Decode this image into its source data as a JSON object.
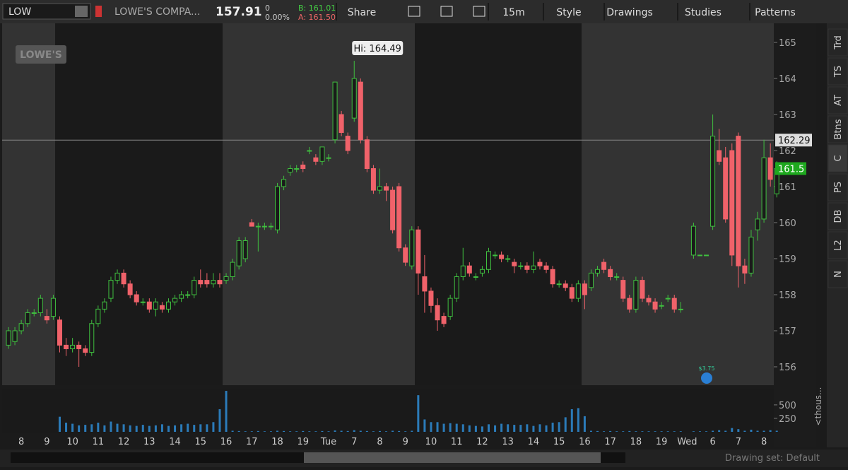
{
  "toolbar": {
    "symbol": "LOW",
    "company": "LOWE'S COMPA...",
    "last": "157.91",
    "change": "0",
    "change_pct": "0.00%",
    "bid": "B: 161.01",
    "ask": "A: 161.50",
    "buttons": [
      "Share",
      "15m",
      "Style",
      "Drawings",
      "Studies",
      "Patterns"
    ]
  },
  "side_tabs": [
    "Trd",
    "TS",
    "AT",
    "Btns",
    "C",
    "PS",
    "DB",
    "L2",
    "N"
  ],
  "logo": "LOWE'S",
  "drawing_set": "Drawing set: Default",
  "chart_data": {
    "type": "candlestick",
    "categories": [
      null,
      null,
      "8",
      null,
      null,
      null,
      "9",
      null,
      null,
      null,
      "10",
      null,
      null,
      null,
      "11",
      null,
      null,
      null,
      "12",
      null,
      null,
      null,
      "13",
      null,
      null,
      null,
      "14",
      null,
      null,
      null,
      "15",
      null,
      null,
      null,
      "16",
      null,
      null,
      null,
      "17",
      null,
      null,
      null,
      "18",
      null,
      null,
      null,
      "19",
      null,
      null,
      null,
      "Tue",
      null,
      null,
      null,
      "7",
      null,
      null,
      null,
      "8",
      null,
      null,
      null,
      "9",
      null,
      null,
      null,
      "10",
      null,
      null,
      null,
      "11",
      null,
      null,
      null,
      "12",
      null,
      null,
      null,
      "13",
      null,
      null,
      null,
      "14",
      null,
      null,
      null,
      "15",
      null,
      null,
      null,
      "16",
      null,
      null,
      null,
      "17",
      null,
      null,
      null,
      "18",
      null,
      null,
      null,
      "19",
      null,
      null,
      null,
      "Wed",
      null,
      null,
      null,
      "6",
      null,
      null,
      null,
      "7",
      null,
      null,
      null,
      "8",
      null,
      null
    ],
    "candles": [
      [
        156.6,
        157.1,
        156.5,
        157.0
      ],
      [
        156.7,
        157.1,
        156.6,
        157.0
      ],
      [
        157.0,
        157.3,
        156.9,
        157.2
      ],
      [
        157.2,
        157.6,
        157.1,
        157.5
      ],
      [
        157.5,
        157.6,
        157.4,
        157.5
      ],
      [
        157.5,
        158.0,
        157.4,
        157.9
      ],
      [
        157.4,
        157.6,
        157.2,
        157.3
      ],
      [
        157.4,
        158.0,
        157.3,
        157.9
      ],
      [
        157.3,
        157.4,
        156.4,
        156.6
      ],
      [
        156.6,
        156.8,
        156.3,
        156.5
      ],
      [
        156.5,
        156.8,
        156.4,
        156.6
      ],
      [
        156.6,
        156.7,
        156.0,
        156.5
      ],
      [
        156.5,
        156.6,
        156.3,
        156.4
      ],
      [
        156.4,
        157.3,
        156.3,
        157.2
      ],
      [
        157.2,
        157.7,
        157.1,
        157.6
      ],
      [
        157.6,
        157.9,
        157.5,
        157.8
      ],
      [
        157.9,
        158.5,
        157.8,
        158.4
      ],
      [
        158.4,
        158.7,
        158.3,
        158.6
      ],
      [
        158.6,
        158.7,
        158.2,
        158.3
      ],
      [
        158.3,
        158.4,
        157.9,
        158.0
      ],
      [
        158.0,
        158.1,
        157.7,
        157.8
      ],
      [
        157.8,
        157.9,
        157.7,
        157.8
      ],
      [
        157.8,
        157.9,
        157.5,
        157.6
      ],
      [
        157.6,
        157.9,
        157.4,
        157.8
      ],
      [
        157.7,
        157.8,
        157.5,
        157.6
      ],
      [
        157.6,
        157.9,
        157.5,
        157.8
      ],
      [
        157.8,
        158.0,
        157.7,
        157.9
      ],
      [
        157.9,
        158.1,
        157.8,
        158.0
      ],
      [
        158.0,
        158.1,
        157.9,
        158.0
      ],
      [
        158.0,
        158.5,
        157.9,
        158.4
      ],
      [
        158.4,
        158.7,
        158.2,
        158.3
      ],
      [
        158.4,
        158.6,
        158.2,
        158.3
      ],
      [
        158.3,
        158.6,
        158.2,
        158.4
      ],
      [
        158.4,
        158.6,
        158.2,
        158.3
      ],
      [
        158.4,
        158.6,
        158.3,
        158.5
      ],
      [
        158.5,
        159.0,
        158.4,
        158.9
      ],
      [
        158.8,
        159.6,
        158.7,
        159.5
      ],
      [
        159.0,
        159.6,
        158.9,
        159.5
      ],
      [
        160.0,
        160.1,
        159.9,
        159.9
      ],
      [
        159.9,
        160.0,
        159.2,
        159.9
      ],
      [
        159.9,
        160.0,
        159.8,
        159.9
      ],
      [
        159.9,
        160.0,
        159.8,
        159.9
      ],
      [
        159.8,
        161.1,
        159.7,
        161.0
      ],
      [
        161.0,
        161.3,
        160.9,
        161.2
      ],
      [
        161.4,
        161.6,
        161.3,
        161.5
      ],
      [
        161.5,
        161.6,
        161.4,
        161.5
      ],
      [
        161.6,
        161.7,
        161.4,
        161.5
      ],
      [
        162.0,
        162.1,
        161.9,
        162.0
      ],
      [
        161.8,
        161.9,
        161.6,
        161.7
      ],
      [
        161.7,
        162.1,
        161.6,
        162.1
      ],
      [
        161.8,
        161.9,
        161.7,
        161.8
      ],
      [
        162.3,
        163.9,
        162.2,
        163.9
      ],
      [
        163.0,
        163.1,
        162.4,
        162.5
      ],
      [
        162.4,
        162.5,
        161.9,
        162.0
      ],
      [
        162.9,
        164.49,
        162.8,
        164.0
      ],
      [
        163.9,
        164.0,
        162.2,
        162.3
      ],
      [
        162.3,
        162.4,
        161.4,
        161.5
      ],
      [
        161.5,
        161.6,
        160.8,
        160.9
      ],
      [
        160.9,
        161.5,
        160.8,
        161.0
      ],
      [
        161.0,
        161.1,
        160.6,
        160.9
      ],
      [
        160.9,
        161.0,
        159.7,
        159.8
      ],
      [
        161.0,
        161.1,
        159.2,
        159.3
      ],
      [
        159.3,
        159.4,
        158.8,
        158.9
      ],
      [
        158.8,
        159.9,
        158.7,
        159.8
      ],
      [
        159.8,
        159.9,
        158.0,
        158.6
      ],
      [
        158.5,
        159.1,
        157.5,
        158.1
      ],
      [
        158.1,
        158.2,
        157.5,
        157.7
      ],
      [
        157.7,
        157.9,
        157.0,
        157.3
      ],
      [
        157.4,
        157.5,
        157.1,
        157.2
      ],
      [
        157.4,
        158.0,
        157.3,
        157.9
      ],
      [
        157.9,
        158.6,
        157.8,
        158.5
      ],
      [
        158.5,
        159.3,
        158.4,
        158.8
      ],
      [
        158.8,
        158.9,
        158.5,
        158.6
      ],
      [
        158.5,
        158.6,
        158.4,
        158.5
      ],
      [
        158.6,
        158.8,
        158.5,
        158.7
      ],
      [
        158.7,
        159.3,
        158.6,
        159.2
      ],
      [
        159.1,
        159.2,
        159.0,
        159.1
      ],
      [
        159.1,
        159.2,
        158.9,
        159.0
      ],
      [
        159.0,
        159.1,
        158.9,
        159.0
      ],
      [
        158.9,
        159.0,
        158.6,
        158.8
      ],
      [
        158.8,
        158.9,
        158.7,
        158.8
      ],
      [
        158.8,
        158.9,
        158.6,
        158.7
      ],
      [
        158.7,
        159.2,
        158.6,
        158.8
      ],
      [
        158.9,
        159.0,
        158.7,
        158.8
      ],
      [
        158.8,
        158.9,
        158.6,
        158.7
      ],
      [
        158.7,
        158.8,
        158.2,
        158.3
      ],
      [
        158.3,
        158.4,
        158.2,
        158.3
      ],
      [
        158.3,
        158.4,
        158.1,
        158.2
      ],
      [
        158.2,
        158.3,
        157.8,
        157.9
      ],
      [
        157.9,
        158.4,
        157.8,
        158.3
      ],
      [
        158.3,
        158.4,
        157.6,
        158.0
      ],
      [
        158.2,
        158.7,
        158.1,
        158.6
      ],
      [
        158.6,
        158.8,
        158.5,
        158.7
      ],
      [
        158.9,
        159.0,
        158.6,
        158.7
      ],
      [
        158.7,
        158.8,
        158.4,
        158.5
      ],
      [
        158.5,
        158.6,
        158.4,
        158.5
      ],
      [
        158.4,
        158.5,
        157.8,
        157.9
      ],
      [
        157.9,
        158.0,
        157.5,
        157.6
      ],
      [
        157.6,
        158.5,
        157.5,
        158.4
      ],
      [
        158.4,
        158.5,
        157.8,
        157.9
      ],
      [
        157.9,
        158.0,
        157.7,
        157.8
      ],
      [
        157.8,
        157.9,
        157.5,
        157.6
      ],
      [
        157.7,
        157.8,
        157.6,
        157.7
      ],
      [
        157.9,
        158.0,
        157.8,
        157.9
      ],
      [
        157.9,
        158.0,
        157.5,
        157.6
      ],
      [
        157.6,
        157.8,
        157.5,
        157.6
      ],
      null,
      [
        159.1,
        160.0,
        159.0,
        159.9
      ],
      [
        159.1,
        159.1,
        159.1,
        159.1
      ],
      [
        159.1,
        159.1,
        159.1,
        159.1
      ],
      [
        159.9,
        163.0,
        159.8,
        162.4
      ],
      [
        162.0,
        162.6,
        161.6,
        161.7
      ],
      [
        161.8,
        162.1,
        160.0,
        160.1
      ],
      [
        162.0,
        162.2,
        158.8,
        159.1
      ],
      [
        162.4,
        162.5,
        158.2,
        158.8
      ],
      [
        158.8,
        159.0,
        158.3,
        158.6
      ],
      [
        158.6,
        159.8,
        158.5,
        159.6
      ],
      [
        159.8,
        160.3,
        159.5,
        160.1
      ],
      [
        160.1,
        162.3,
        160.0,
        161.8
      ],
      [
        161.8,
        162.2,
        161.0,
        161.2
      ],
      [
        160.8,
        161.7,
        160.7,
        161.5
      ]
    ],
    "volumes": [
      0,
      0,
      0,
      0,
      0,
      0,
      0,
      0,
      280,
      170,
      150,
      120,
      130,
      140,
      170,
      120,
      190,
      150,
      140,
      120,
      110,
      130,
      110,
      120,
      140,
      110,
      120,
      140,
      150,
      130,
      140,
      140,
      180,
      420,
      760,
      20,
      15,
      10,
      10,
      15,
      10,
      10,
      20,
      15,
      10,
      10,
      15,
      10,
      10,
      15,
      10,
      25,
      20,
      15,
      30,
      20,
      15,
      10,
      15,
      10,
      20,
      15,
      10,
      20,
      680,
      230,
      180,
      180,
      150,
      160,
      150,
      140,
      120,
      110,
      100,
      140,
      120,
      150,
      140,
      130,
      130,
      140,
      110,
      140,
      120,
      170,
      180,
      270,
      420,
      440,
      290,
      20,
      15,
      10,
      15,
      10,
      10,
      15,
      10,
      10,
      10,
      10,
      10,
      10,
      10,
      10,
      null,
      10,
      10,
      10,
      20,
      30,
      20,
      70,
      50,
      20,
      40,
      20,
      20,
      30,
      20
    ],
    "ylim": [
      155.49,
      165.53
    ],
    "yticks": [
      156,
      157,
      158,
      159,
      160,
      161,
      162,
      163,
      164,
      165
    ],
    "volume_ylim": [
      0,
      800
    ],
    "volume_yticks": [
      250,
      500
    ],
    "volume_axis_label": "<thous...",
    "price_line": 162.29,
    "high_label": "Hi: 164.49",
    "dividend_label": "$3.75",
    "up_color": "#3fbf3f",
    "down_color": "#f0626a"
  }
}
